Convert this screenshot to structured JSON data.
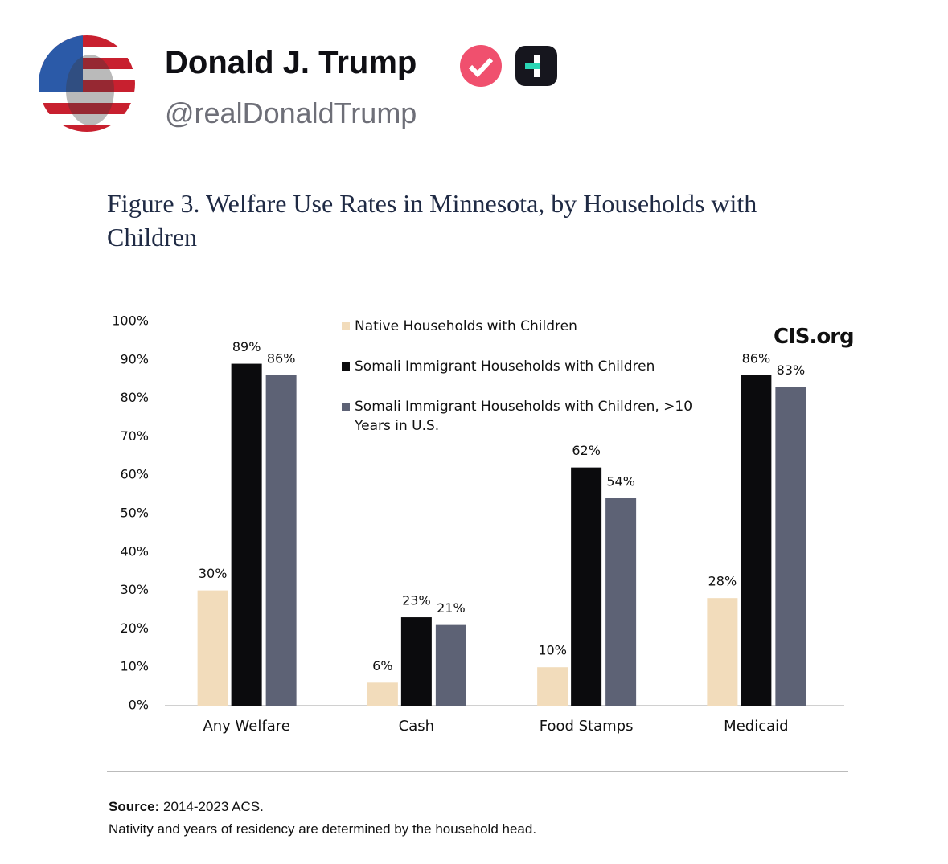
{
  "post": {
    "author": "Donald J. Trump",
    "handle": "@realDonaldTrump"
  },
  "chart_data": {
    "type": "bar",
    "title": "Figure 3. Welfare Use Rates in Minnesota, by Households with Children",
    "annotation": "CIS.org",
    "categories": [
      "Any Welfare",
      "Cash",
      "Food Stamps",
      "Medicaid"
    ],
    "series": [
      {
        "name": "Native Households with Children",
        "color": "#f2dcbb",
        "values": [
          30,
          6,
          10,
          28
        ],
        "value_labels": [
          "30%",
          "6%",
          "10%",
          "28%"
        ]
      },
      {
        "name": "Somali Immigrant Households with Children",
        "color": "#0b0b0d",
        "values": [
          89,
          23,
          62,
          86
        ],
        "value_labels": [
          "89%",
          "23%",
          "62%",
          "86%"
        ]
      },
      {
        "name": "Somali Immigrant Households with Children, >10 Years in U.S.",
        "color": "#5d6275",
        "values": [
          86,
          21,
          54,
          83
        ],
        "value_labels": [
          "86%",
          "21%",
          "54%",
          "83%"
        ]
      }
    ],
    "ylim": [
      0,
      100
    ],
    "yticks": [
      {
        "value": 0,
        "label": "0%"
      },
      {
        "value": 10,
        "label": "10%"
      },
      {
        "value": 20,
        "label": "20%"
      },
      {
        "value": 30,
        "label": "30%"
      },
      {
        "value": 40,
        "label": "40%"
      },
      {
        "value": 50,
        "label": "50%"
      },
      {
        "value": 60,
        "label": "60%"
      },
      {
        "value": 70,
        "label": "70%"
      },
      {
        "value": 80,
        "label": "80%"
      },
      {
        "value": 90,
        "label": "90%"
      },
      {
        "value": 100,
        "label": "100%"
      }
    ],
    "grid": false,
    "source_label": "Source:",
    "source": "2014-2023 ACS.",
    "note": "Nativity and years of residency are determined by the household head."
  }
}
